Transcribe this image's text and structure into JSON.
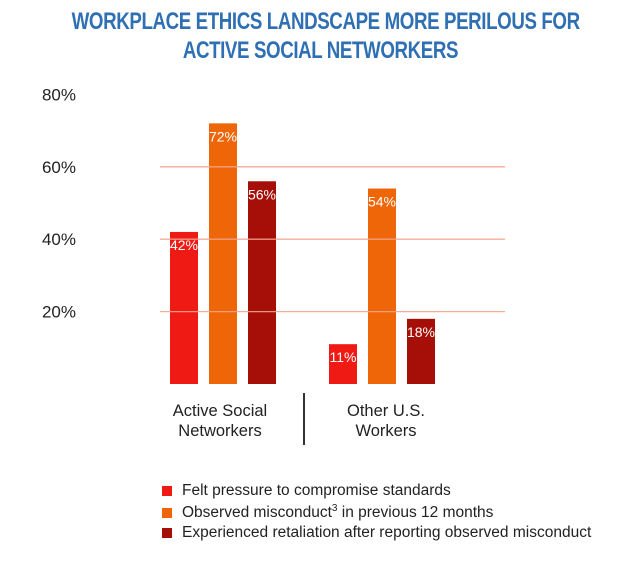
{
  "chart_data": {
    "type": "bar",
    "title": "WORKPLACE ETHICS LANDSCAPE MORE PERILOUS FOR ACTIVE SOCIAL NETWORKERS",
    "title_lines": [
      "WORKPLACE ETHICS LANDSCAPE MORE PERILOUS FOR",
      "ACTIVE SOCIAL NETWORKERS"
    ],
    "categories": [
      [
        "Active Social",
        "Networkers"
      ],
      [
        "Other U.S.",
        "Workers"
      ]
    ],
    "series": [
      {
        "name": "Felt pressure to compromise standards",
        "values": [
          42,
          11
        ],
        "labels": [
          "42%",
          "11%"
        ],
        "color": "#f01a14"
      },
      {
        "name": "Observed misconduct3 in previous 12 months",
        "name_main": "Observed misconduct",
        "name_sup": "3",
        "name_rest": " in previous 12 months",
        "values": [
          72,
          54
        ],
        "labels": [
          "72%",
          "54%"
        ],
        "color": "#ee6608"
      },
      {
        "name": "Experienced retaliation after reporting observed misconduct",
        "values": [
          56,
          18
        ],
        "labels": [
          "56%",
          "18%"
        ],
        "color": "#a50f08"
      }
    ],
    "yticks": [
      20,
      40,
      60,
      80
    ],
    "ytick_labels": [
      "20%",
      "40%",
      "60%",
      "80%"
    ],
    "ylim": [
      0,
      80
    ],
    "grid": true,
    "grid_color": "#f3a58d",
    "title_color": "#2f6fb3",
    "legend_position": "bottom"
  }
}
